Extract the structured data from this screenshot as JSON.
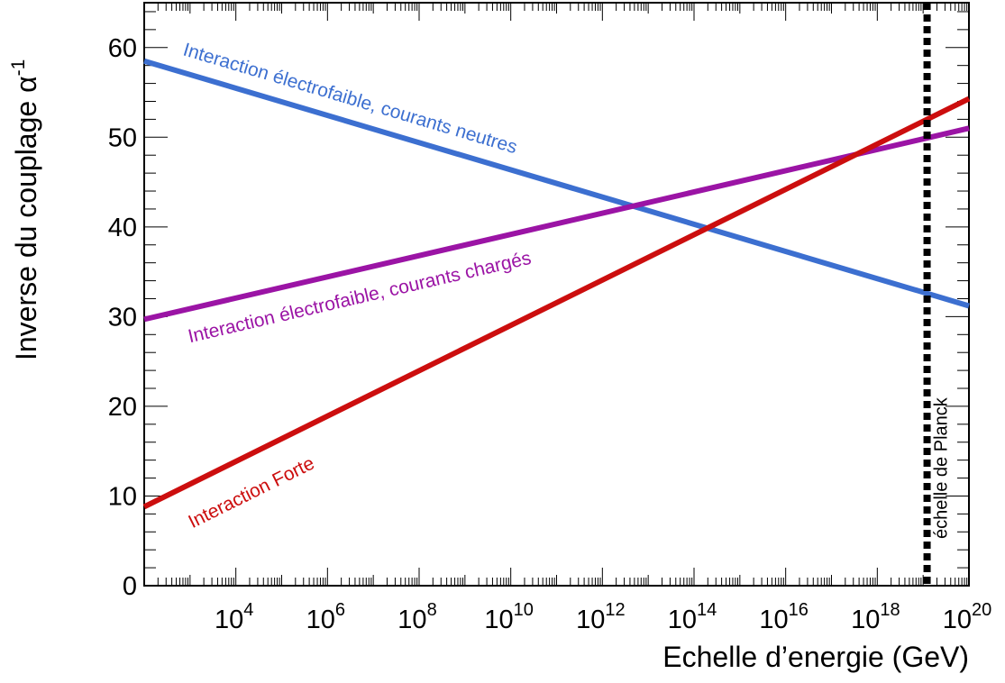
{
  "chart_data": {
    "type": "line",
    "xlabel": "Echelle d’energie (GeV)",
    "ylabel": "Inverse du couplage α",
    "ylabel_superscript": "-1",
    "x_scale": "log10",
    "xlim": [
      100,
      1e+20
    ],
    "ylim": [
      0,
      65
    ],
    "x_tick_labels": [
      {
        "exp": "4",
        "value": 10000.0
      },
      {
        "exp": "6",
        "value": 1000000.0
      },
      {
        "exp": "8",
        "value": 100000000.0
      },
      {
        "exp": "10",
        "value": 10000000000.0
      },
      {
        "exp": "12",
        "value": 1000000000000.0
      },
      {
        "exp": "14",
        "value": 100000000000000.0
      },
      {
        "exp": "16",
        "value": 1e+16
      },
      {
        "exp": "18",
        "value": 1e+18
      },
      {
        "exp": "20",
        "value": 1e+20
      }
    ],
    "y_ticks": [
      0,
      10,
      20,
      30,
      40,
      50,
      60
    ],
    "series": [
      {
        "name": "Interaction électrofaible, courants neutres",
        "color": "#3c6fd0",
        "x": [
          100,
          1e+20
        ],
        "y": [
          58.5,
          31.2
        ]
      },
      {
        "name": "Interaction électrofaible, courants chargés",
        "color": "#9b14a5",
        "x": [
          100,
          1e+20
        ],
        "y": [
          29.7,
          51.0
        ]
      },
      {
        "name": "Interaction Forte",
        "color": "#cc0e0e",
        "x": [
          100,
          1e+20
        ],
        "y": [
          8.8,
          54.3
        ]
      }
    ],
    "vertical_line": {
      "label": "échelle de Planck",
      "x": 1.22e+19,
      "color": "#000000",
      "style": "dashed"
    }
  }
}
